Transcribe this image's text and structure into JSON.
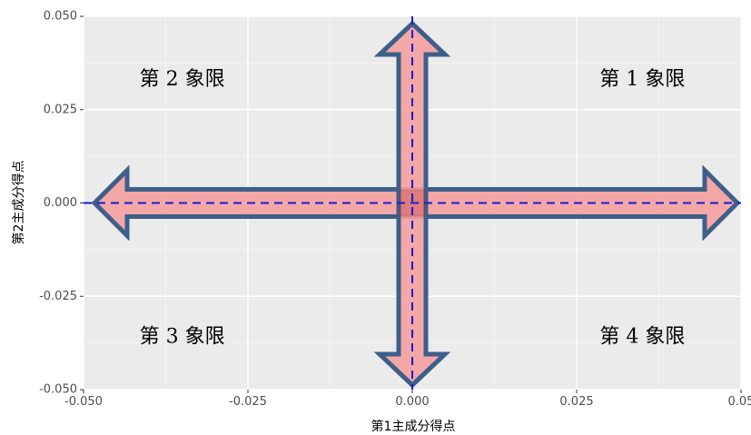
{
  "chart_data": {
    "type": "scatter",
    "xlabel": "第1主成分得点",
    "ylabel": "第2主成分得点",
    "xlim": [
      -0.05,
      0.05
    ],
    "ylim": [
      -0.05,
      0.05
    ],
    "x_ticks": [
      -0.05,
      -0.025,
      0.0,
      0.025,
      0.05
    ],
    "y_ticks": [
      -0.05,
      -0.025,
      0.0,
      0.025,
      0.05
    ],
    "x_tick_labels": [
      "-0.050",
      "-0.025",
      "0.000",
      "0.025",
      "0.05"
    ],
    "y_tick_labels": [
      "-0.050",
      "-0.025",
      "0.000",
      "0.025",
      "0.050"
    ],
    "grid": true,
    "reference_lines": [
      {
        "orientation": "vertical",
        "value": 0,
        "style": "dashed",
        "color": "#1a1ad4"
      },
      {
        "orientation": "horizontal",
        "value": 0,
        "style": "dashed",
        "color": "#1a1ad4"
      }
    ],
    "annotations": [
      {
        "text": "第 1 象限",
        "x": 0.035,
        "y": 0.033
      },
      {
        "text": "第 2 象限",
        "x": -0.035,
        "y": 0.033
      },
      {
        "text": "第 3 象限",
        "x": -0.035,
        "y": -0.036
      },
      {
        "text": "第 4 象限",
        "x": 0.035,
        "y": -0.036
      }
    ],
    "arrows": {
      "fill": "#f4a0a0",
      "stroke": "#3d5f8a"
    }
  },
  "colors": {
    "panel": "#ebebeb",
    "grid_major": "#ffffff",
    "grid_minor": "#f5f5f5"
  }
}
